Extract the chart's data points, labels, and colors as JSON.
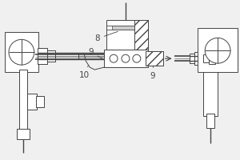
{
  "bg_color": "#f0f0f0",
  "line_color": "#444444",
  "white": "#ffffff",
  "gray": "#cccccc",
  "figsize": [
    3.0,
    2.0
  ],
  "dpi": 100
}
